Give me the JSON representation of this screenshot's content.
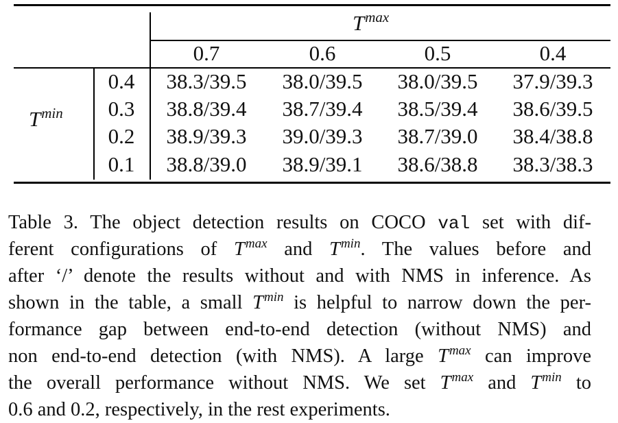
{
  "table": {
    "col_group": {
      "base": "T",
      "sup": "max"
    },
    "row_group": {
      "base": "T",
      "sup": "min"
    },
    "col_headers": [
      "0.7",
      "0.6",
      "0.5",
      "0.4"
    ],
    "rows": [
      {
        "label": "0.4",
        "cells": [
          "38.3/39.5",
          "38.0/39.5",
          "38.0/39.5",
          "37.9/39.3"
        ]
      },
      {
        "label": "0.3",
        "cells": [
          "38.8/39.4",
          "38.7/39.4",
          "38.5/39.4",
          "38.6/39.5"
        ]
      },
      {
        "label": "0.2",
        "cells": [
          "38.9/39.3",
          "39.0/39.3",
          "38.7/39.0",
          "38.4/38.8"
        ]
      },
      {
        "label": "0.1",
        "cells": [
          "38.8/39.0",
          "38.9/39.1",
          "38.6/38.8",
          "38.3/38.3"
        ]
      }
    ]
  },
  "caption": {
    "l1a": "Table 3.  The object detection results on COCO ",
    "l1code": "val",
    "l1b": " set with dif-",
    "l2a": "ferent configurations of ",
    "l2b": " and ",
    "l2c": ".  The values before and",
    "l3": "after ‘/’ denote the results without and with NMS in inference. As",
    "l4a": "shown in the table, a small ",
    "l4b": " is helpful to narrow down the per-",
    "l5": "formance gap between end-to-end detection (without NMS) and",
    "l6a": "non end-to-end detection (with NMS). A large ",
    "l6b": " can improve",
    "l7a": "the overall performance without NMS. We set ",
    "l7b": " and ",
    "l7c": " to",
    "l8": "0.6 and 0.2, respectively, in the rest experiments.",
    "t_base": "T",
    "max": "max",
    "min": "min"
  }
}
